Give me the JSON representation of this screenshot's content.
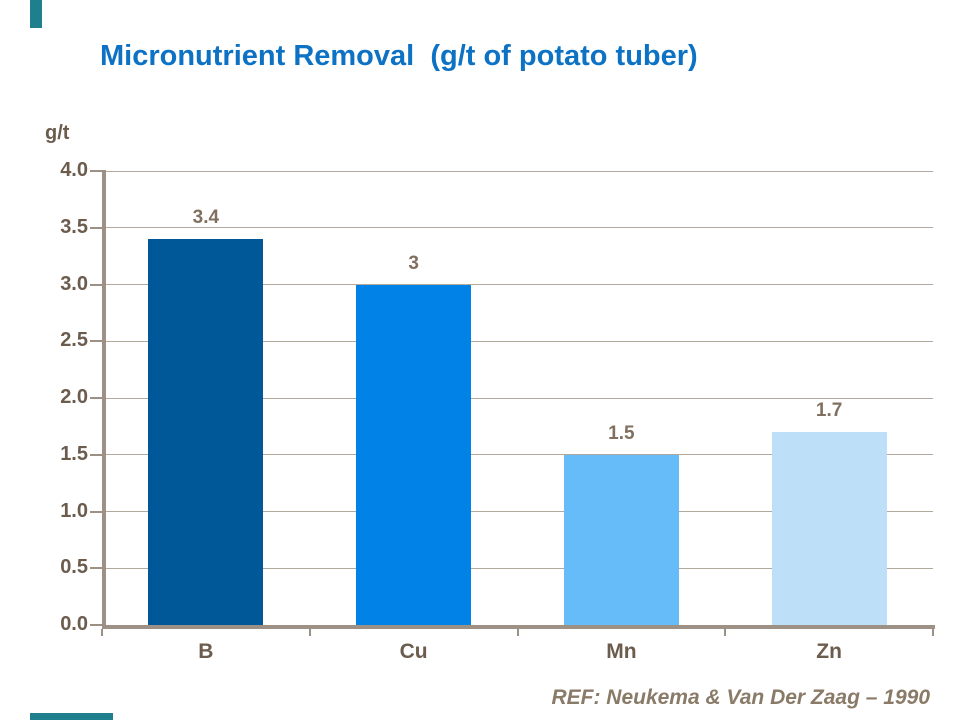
{
  "slide": {
    "title": "Micronutrient Removal  (g/t of potato tuber)",
    "title_color": "#0D72C4",
    "reference": "REF: Neukema & Van Der Zaag – 1990",
    "reference_color": "#8A7A68",
    "accent_color": "#1E808C",
    "background_color": "#FFFFFF"
  },
  "chart_data": {
    "type": "bar",
    "title": "Micronutrient Removal (g/t of potato tuber)",
    "ylabel": "g/t",
    "xlabel": "",
    "categories": [
      "B",
      "Cu",
      "Mn",
      "Zn"
    ],
    "values": [
      3.4,
      3,
      1.5,
      1.7
    ],
    "data_labels": [
      "3.4",
      "3",
      "1.5",
      "1.7"
    ],
    "bar_colors": [
      "#005898",
      "#0082E6",
      "#66BCF8",
      "#BEDFF8"
    ],
    "ylim": [
      0,
      4
    ],
    "ytick_step": 0.5,
    "ytick_labels": [
      "0.0",
      "0.5",
      "1.0",
      "1.5",
      "2.0",
      "2.5",
      "3.0",
      "3.5",
      "4.0"
    ],
    "grid": true,
    "legend": false,
    "gridline_color": "#B2A89C",
    "axis_color": "#9C9184",
    "tick_label_color": "#6B5C4E",
    "data_label_color": "#80705F"
  }
}
